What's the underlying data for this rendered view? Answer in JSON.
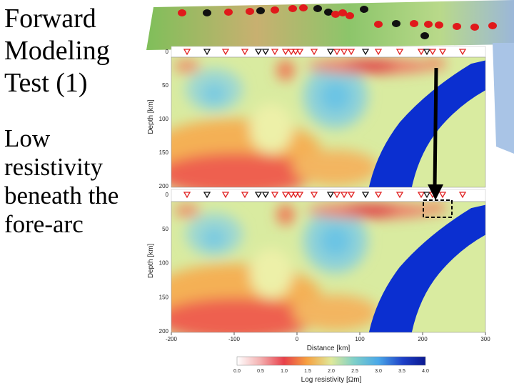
{
  "slide": {
    "title_lines": [
      "Forward",
      "Modeling",
      "Test (1)"
    ],
    "body_lines": [
      "Low",
      "resistivity",
      "beneath the",
      "fore-arc"
    ]
  },
  "figure": {
    "panels": [
      {
        "y_label": "Depth [km]",
        "y_ticks": [
          "0",
          "50",
          "100",
          "150",
          "200"
        ]
      },
      {
        "y_label": "Depth [km]",
        "y_ticks": [
          "0",
          "50",
          "100",
          "150",
          "200"
        ]
      }
    ],
    "x_ticks": [
      "-200",
      "-100",
      "0",
      "100",
      "200",
      "300"
    ],
    "x_label": "Distance [km]",
    "colorbar": {
      "ticks": [
        "0.0",
        "0.5",
        "1.0",
        "1.5",
        "2.0",
        "2.5",
        "3.0",
        "3.5",
        "4.0"
      ],
      "label": "Log resistivity [Ωm]"
    }
  }
}
